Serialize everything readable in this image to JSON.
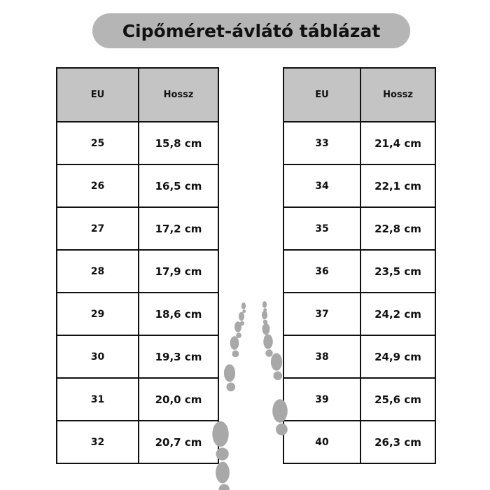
{
  "title": "Cipőméret-ávlátó táblázat",
  "tables": [
    {
      "headers": [
        "EU",
        "Hossz"
      ],
      "rows": [
        [
          "25",
          "15,8 cm"
        ],
        [
          "26",
          "16,5 cm"
        ],
        [
          "27",
          "17,2 cm"
        ],
        [
          "28",
          "17,9 cm"
        ],
        [
          "29",
          "18,6 cm"
        ],
        [
          "30",
          "19,3 cm"
        ],
        [
          "31",
          "20,0 cm"
        ],
        [
          "32",
          "20,7 cm"
        ]
      ]
    },
    {
      "headers": [
        "EU",
        "Hossz"
      ],
      "rows": [
        [
          "33",
          "21,4 cm"
        ],
        [
          "34",
          "22,1 cm"
        ],
        [
          "35",
          "22,8 cm"
        ],
        [
          "36",
          "23,5 cm"
        ],
        [
          "37",
          "24,2 cm"
        ],
        [
          "38",
          "24,9 cm"
        ],
        [
          "39",
          "25,6 cm"
        ],
        [
          "40",
          "26,3 cm"
        ]
      ]
    }
  ],
  "colors": {
    "title_bg": "#b5b5b5",
    "header_bg": "#c4c4c4",
    "footprint": "#a8a8a8"
  },
  "decoration": "footprints-icon"
}
